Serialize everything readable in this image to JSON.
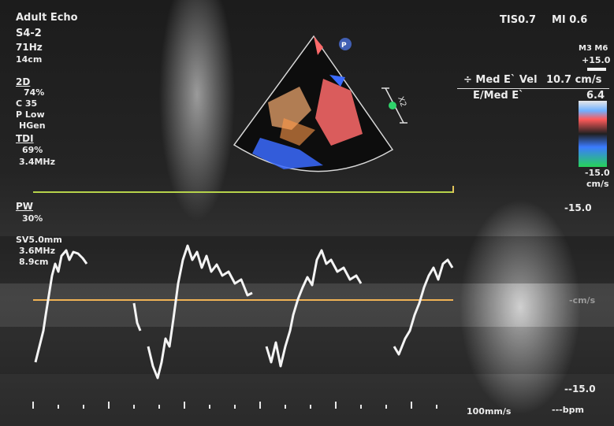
{
  "header": {
    "mode": "Adult Echo",
    "probe": "S4-2",
    "frame_rate": "71Hz",
    "depth": "14cm",
    "tis": "TIS0.7",
    "mi": "MI 0.6"
  },
  "params_2d": {
    "label": "2D",
    "gain": "74%",
    "compression": "C 35",
    "power": "P Low",
    "harmonic": "HGen"
  },
  "params_tdi": {
    "label": "TDI",
    "gain": "69%",
    "freq": "3.4MHz"
  },
  "params_pw": {
    "label": "PW",
    "gain": "30%",
    "sample_volume": "SV5.0mm",
    "freq": "3.6MHz",
    "depth": "8.9cm"
  },
  "measurements": {
    "row1_label": "÷ Med E` Vel",
    "row1_value": "10.7 cm/s",
    "row2_label": "E/Med E`",
    "row2_value": "6.4"
  },
  "color_bar": {
    "map_label": "M3 M6",
    "top_value": "+15.0",
    "bottom_value": "-15.0",
    "unit": "cm/s"
  },
  "spectral_scale": {
    "top": "-15.0",
    "middle": "-cm/s",
    "bottom": "--15.0"
  },
  "footer": {
    "sweep_speed": "100mm/s",
    "heart_rate": "---bpm"
  },
  "sector_marker": "P",
  "depth_marker": "X2",
  "colors": {
    "baseline": "#f0b255",
    "pw_line": "#b6d34a",
    "doppler_red": "#ff6b6b",
    "doppler_blue": "#3b6bff",
    "envelope_green": "#2fd36b"
  }
}
